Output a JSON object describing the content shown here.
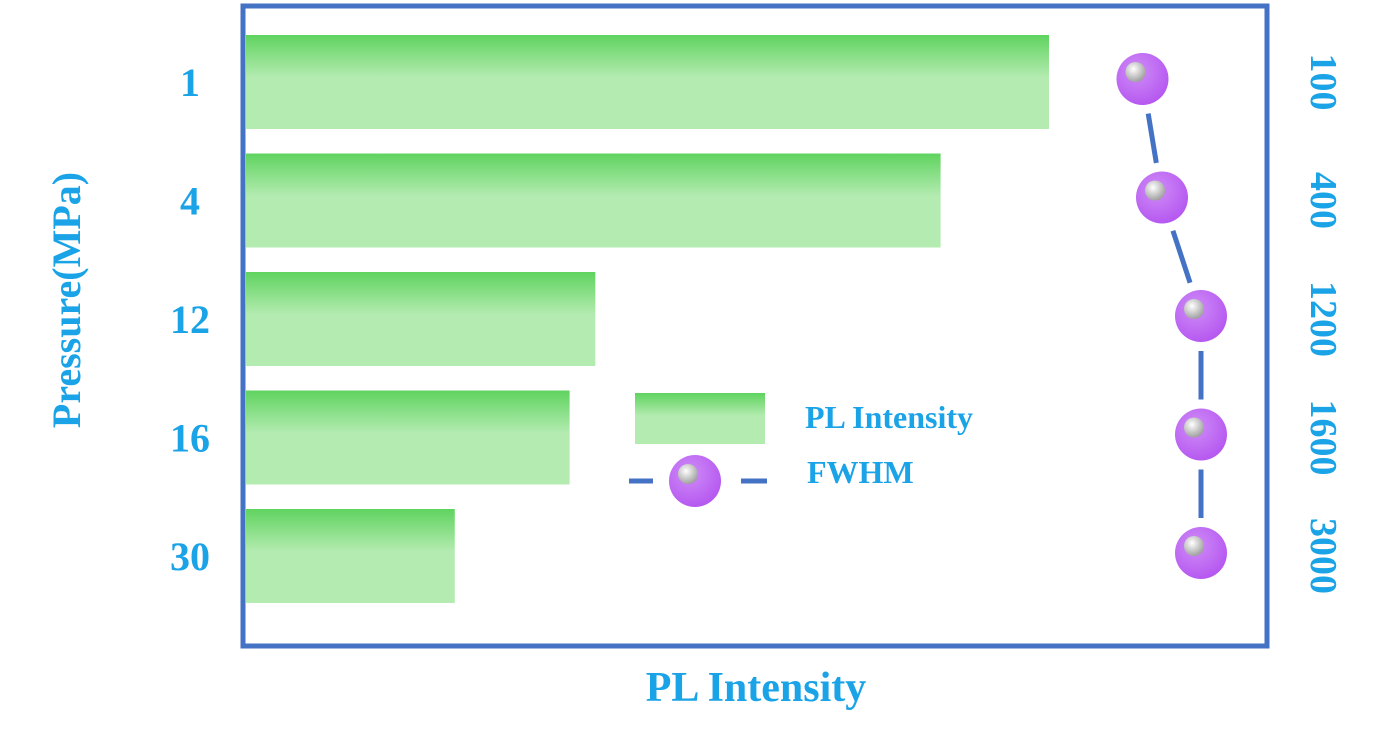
{
  "chart_data": {
    "type": "bar",
    "orientation": "horizontal",
    "categories": [
      "1",
      "4",
      "12",
      "16",
      "30"
    ],
    "series": [
      {
        "name": "PL Intensity",
        "values": [
          100,
          86.5,
          43.5,
          40.3,
          26.0
        ]
      },
      {
        "name": "FWHM",
        "values": [
          1,
          2,
          4,
          4,
          4
        ]
      }
    ],
    "ylabel": "Pressure(MPa)",
    "xlabel": "PL Intensity",
    "secondary_axis_labels": [
      "100",
      "400",
      "1200",
      "1600",
      "3000"
    ],
    "legend": [
      "PL Intensity",
      "FWHM"
    ],
    "legend_position": "center",
    "colors": {
      "bar_top": "#5fd35f",
      "bar_bottom": "#b3ebb0",
      "frame": "#4472c4",
      "label": "#1aa3e6",
      "marker": "#b455f0",
      "marker_highlight": "#d9d9d9",
      "line": "#4472c4"
    }
  }
}
